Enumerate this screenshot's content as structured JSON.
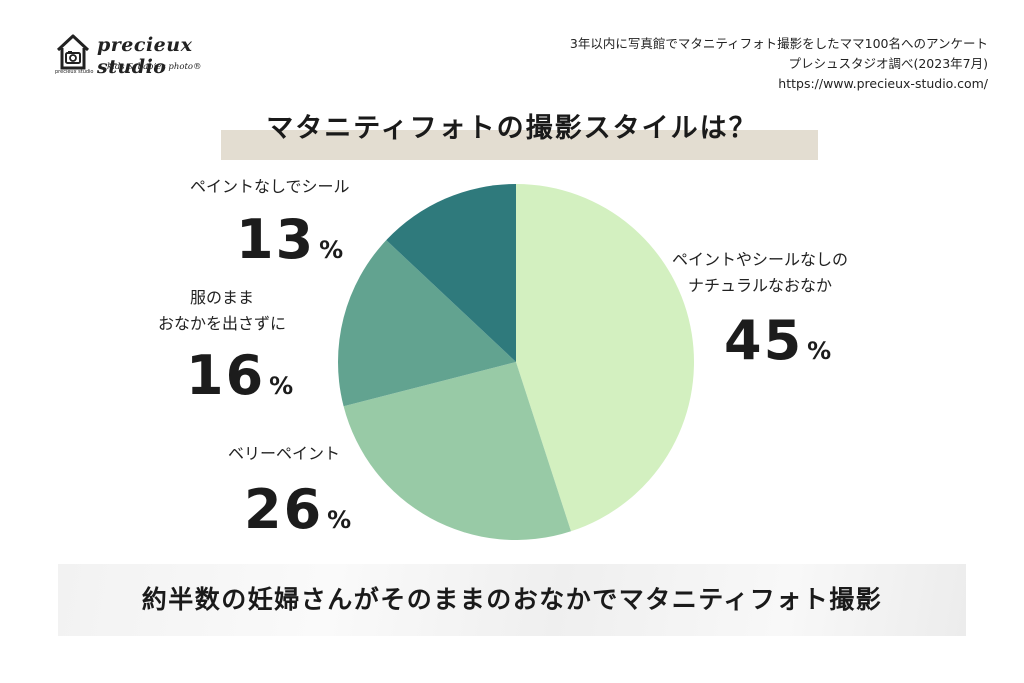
{
  "brand": {
    "name": "precieux studio",
    "tagline": "kids & babies photo®",
    "mark_text": "precieux studio"
  },
  "source": {
    "line1": "3年以内に写真館でマタニティフォト撮影をしたママ100名へのアンケート",
    "line2": "プレシュスタジオ調べ(2023年7月)",
    "line3": "https://www.precieux-studio.com/"
  },
  "chart_data": {
    "type": "pie",
    "title": "マタニティフォトの撮影スタイルは？",
    "unit": "%",
    "slices": [
      {
        "label": "ペイントやシールなしのナチュラルなおなか",
        "label_lines": [
          "ペイントやシールなしの",
          "ナチュラルなおなか"
        ],
        "value": 45,
        "color": "#d3f0c0"
      },
      {
        "label": "ベリーペイント",
        "label_lines": [
          "ベリーペイント"
        ],
        "value": 26,
        "color": "#98caa6"
      },
      {
        "label": "服のままおなかを出さずに",
        "label_lines": [
          "服のまま",
          "おなかを出さずに"
        ],
        "value": 16,
        "color": "#62a390"
      },
      {
        "label": "ペイントなしでシール",
        "label_lines": [
          "ペイントなしでシール"
        ],
        "value": 13,
        "color": "#2f7a7c"
      }
    ]
  },
  "conclusion": "約半数の妊婦さんがそのままのおなかでマタニティフォト撮影"
}
